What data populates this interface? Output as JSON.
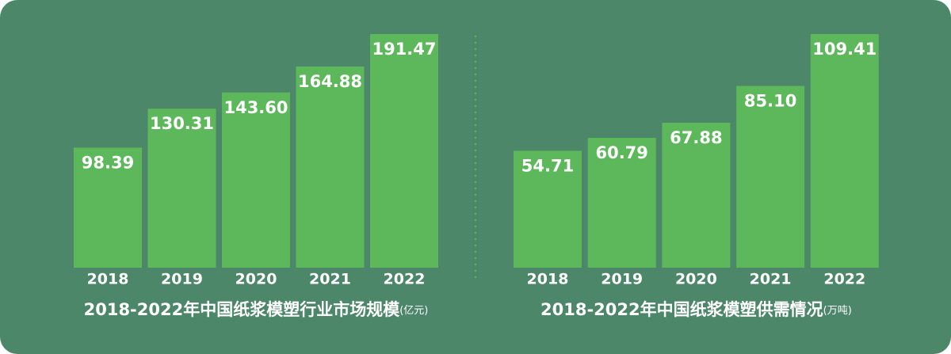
{
  "chart_data": [
    {
      "type": "bar",
      "title": "2018-2022年中国纸浆模塑行业市场规模",
      "unit": "(亿元)",
      "categories": [
        "2018",
        "2019",
        "2020",
        "2021",
        "2022"
      ],
      "values": [
        98.39,
        130.31,
        143.6,
        164.88,
        191.47
      ],
      "value_labels": [
        "98.39",
        "130.31",
        "143.60",
        "164.88",
        "191.47"
      ],
      "color": "#5cb85a"
    },
    {
      "type": "bar",
      "title": "2018-2022年中国纸浆模塑供需情况",
      "unit": "(万吨)",
      "categories": [
        "2018",
        "2019",
        "2020",
        "2021",
        "2022"
      ],
      "values": [
        54.71,
        60.79,
        67.88,
        85.1,
        109.41
      ],
      "value_labels": [
        "54.71",
        "60.79",
        "67.88",
        "85.10",
        "109.41"
      ],
      "color": "#5cb85a"
    }
  ]
}
